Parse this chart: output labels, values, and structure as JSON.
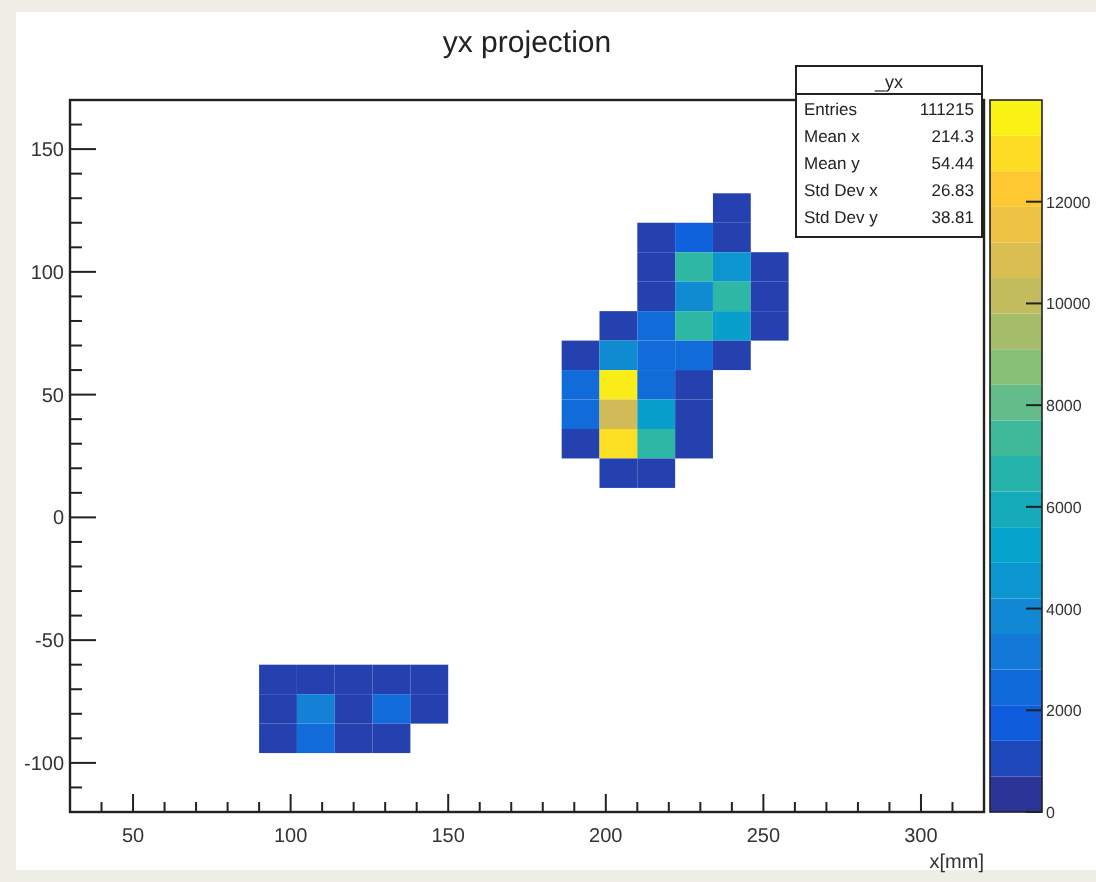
{
  "chart_data": {
    "type": "scatter",
    "title": "yx projection",
    "xlabel": "x[mm]",
    "marker": "square",
    "x": [
      240,
      216,
      228,
      240,
      216,
      228,
      240,
      252,
      216,
      228,
      240,
      252,
      204,
      216,
      228,
      240,
      252,
      192,
      204,
      216,
      228,
      240,
      192,
      204,
      216,
      228,
      192,
      204,
      216,
      228,
      192,
      204,
      216,
      228,
      204,
      216,
      96,
      108,
      120,
      132,
      144,
      96,
      108,
      120,
      132,
      144,
      96,
      108,
      120,
      132
    ],
    "values": [
      126,
      114,
      114,
      114,
      102,
      102,
      102,
      102,
      90,
      90,
      90,
      90,
      78,
      78,
      78,
      78,
      78,
      66,
      66,
      66,
      66,
      66,
      54,
      54,
      54,
      54,
      42,
      42,
      42,
      42,
      30,
      30,
      30,
      30,
      18,
      18,
      -66,
      -66,
      -66,
      -66,
      -66,
      -78,
      -78,
      -78,
      -78,
      -78,
      -90,
      -90,
      -90,
      -90
    ],
    "cvalues": [
      800,
      800,
      2000,
      800,
      800,
      7000,
      4500,
      800,
      800,
      4000,
      7000,
      800,
      800,
      2500,
      7000,
      5000,
      800,
      800,
      4000,
      2500,
      2500,
      800,
      2500,
      13500,
      2500,
      800,
      2500,
      10500,
      5000,
      800,
      800,
      13000,
      7000,
      800,
      800,
      800,
      800,
      800,
      800,
      800,
      800,
      800,
      3500,
      800,
      2500,
      800,
      800,
      2500,
      800,
      800
    ],
    "xlim": [
      30,
      320
    ],
    "ylim": [
      -120,
      170
    ],
    "xticks": [
      {
        "value": 40,
        "label": null
      },
      50,
      {
        "value": 60,
        "label": null
      },
      {
        "value": 70,
        "label": null
      },
      {
        "value": 80,
        "label": null
      },
      {
        "value": 90,
        "label": null
      },
      100,
      {
        "value": 110,
        "label": null
      },
      {
        "value": 120,
        "label": null
      },
      {
        "value": 130,
        "label": null
      },
      {
        "value": 140,
        "label": null
      },
      150,
      {
        "value": 160,
        "label": null
      },
      {
        "value": 170,
        "label": null
      },
      {
        "value": 180,
        "label": null
      },
      {
        "value": 190,
        "label": null
      },
      200,
      {
        "value": 210,
        "label": null
      },
      {
        "value": 220,
        "label": null
      },
      {
        "value": 230,
        "label": null
      },
      {
        "value": 240,
        "label": null
      },
      250,
      {
        "value": 260,
        "label": null
      },
      {
        "value": 270,
        "label": null
      },
      {
        "value": 280,
        "label": null
      },
      {
        "value": 290,
        "label": null
      },
      300,
      {
        "value": 310,
        "label": null
      }
    ],
    "yticks": [
      {
        "value": -110,
        "label": null
      },
      -100,
      {
        "value": -90,
        "label": null
      },
      {
        "value": -80,
        "label": null
      },
      {
        "value": -70,
        "label": null
      },
      {
        "value": -60,
        "label": null
      },
      -50,
      {
        "value": -40,
        "label": null
      },
      {
        "value": -30,
        "label": null
      },
      {
        "value": -20,
        "label": null
      },
      {
        "value": -10,
        "label": null
      },
      0,
      {
        "value": 10,
        "label": null
      },
      {
        "value": 20,
        "label": null
      },
      {
        "value": 30,
        "label": null
      },
      {
        "value": 40,
        "label": null
      },
      50,
      {
        "value": 60,
        "label": null
      },
      {
        "value": 70,
        "label": null
      },
      {
        "value": 80,
        "label": null
      },
      {
        "value": 90,
        "label": null
      },
      100,
      {
        "value": 110,
        "label": null
      },
      {
        "value": 120,
        "label": null
      },
      {
        "value": 130,
        "label": null
      },
      {
        "value": 140,
        "label": null
      },
      150,
      {
        "value": 160,
        "label": null
      }
    ],
    "clim": [
      0,
      14000
    ],
    "cticks": [
      0,
      2000,
      4000,
      6000,
      8000,
      10000,
      12000
    ],
    "annotations": [
      "_yx",
      "Entries",
      "111215",
      "Mean x",
      "214.3",
      "Mean y",
      "54.44",
      "Std Dev x",
      "26.83",
      "Std Dev y",
      "38.81"
    ]
  }
}
